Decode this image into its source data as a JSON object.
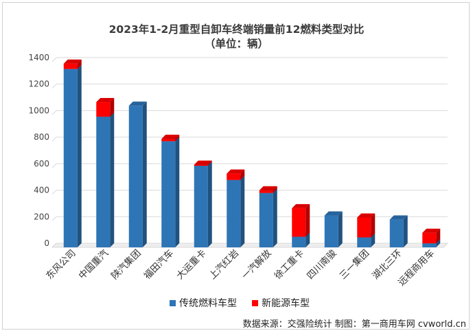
{
  "chart_data": {
    "type": "bar",
    "stacked": true,
    "title": "2023年1-2月重型自卸车终端销量前12燃料类型对比",
    "subtitle": "（单位：辆）",
    "categories": [
      "东风公司",
      "中国重汽",
      "陕汽集团",
      "福田汽车",
      "大运重卡",
      "上汽红岩",
      "一汽解放",
      "徐工重卡",
      "四川南骏",
      "三一集团",
      "湖北三环",
      "远程商用车"
    ],
    "series": [
      {
        "name": "传统燃料车型",
        "color": "#2e75b6",
        "values": [
          1345,
          985,
          1068,
          800,
          615,
          508,
          410,
          80,
          240,
          75,
          210,
          30
        ]
      },
      {
        "name": "新能源车型",
        "color": "#ff0000",
        "values": [
          40,
          110,
          0,
          18,
          8,
          48,
          20,
          215,
          0,
          150,
          0,
          80
        ]
      }
    ],
    "ylim": [
      0,
      1400
    ],
    "yticks": [
      0,
      200,
      400,
      600,
      800,
      1000,
      1200,
      1400
    ],
    "grid": true,
    "legend": "bottom"
  },
  "footer": {
    "source": "数据来源：交强险统计  制图：第一商用车网 cvworld.cn"
  }
}
